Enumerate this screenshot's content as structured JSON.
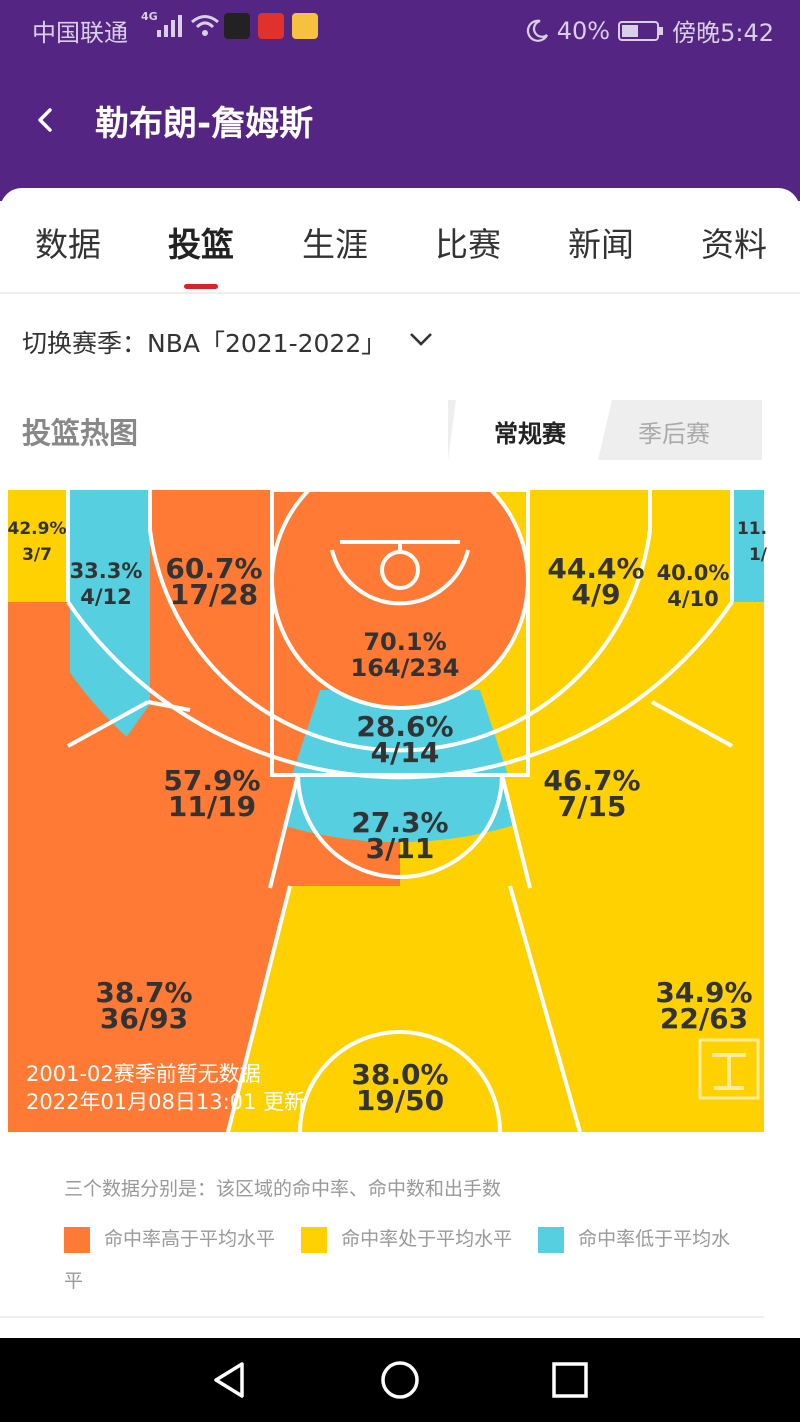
{
  "status": {
    "carrier": "中国联通",
    "network": "4G",
    "battery": "40%",
    "time": "傍晚5:42"
  },
  "header": {
    "title": "勒布朗-詹姆斯"
  },
  "tabs": [
    {
      "label": "数据"
    },
    {
      "label": "投篮"
    },
    {
      "label": "生涯"
    },
    {
      "label": "比赛"
    },
    {
      "label": "新闻"
    },
    {
      "label": "资料"
    }
  ],
  "season": {
    "label": "切换赛季：NBA「2021-2022」"
  },
  "heatmap": {
    "title": "投篮热图",
    "segment": {
      "regular": "常规赛",
      "playoffs": "季后赛"
    },
    "zones": {
      "left_corner3": {
        "pct": "42.9%",
        "att": "3/7"
      },
      "right_corner3": {
        "pct": "11.",
        "att": "1/"
      },
      "left_wing3": {
        "pct": "33.3%",
        "att": "4/12"
      },
      "left_mid_top": {
        "pct": "60.7%",
        "att": "17/28"
      },
      "restricted": {
        "pct": "70.1%",
        "att": "164/234"
      },
      "right_mid_top": {
        "pct": "44.4%",
        "att": "4/9"
      },
      "right_wing3": {
        "pct": "40.0%",
        "att": "4/10"
      },
      "paint": {
        "pct": "28.6%",
        "att": "4/14"
      },
      "left_elbow": {
        "pct": "57.9%",
        "att": "11/19"
      },
      "right_elbow": {
        "pct": "46.7%",
        "att": "7/15"
      },
      "top_mid": {
        "pct": "27.3%",
        "att": "3/11"
      },
      "left_three": {
        "pct": "38.7%",
        "att": "36/93"
      },
      "right_three": {
        "pct": "34.9%",
        "att": "22/63"
      },
      "top_three": {
        "pct": "38.0%",
        "att": "19/50"
      }
    },
    "note_line1": "2001-02赛季前暂无数据",
    "note_line2": "2022年01月08日13:01 更新",
    "legend_desc": "三个数据分别是：该区域的命中率、命中数和出手数",
    "legend": [
      {
        "label": "命中率高于平均水平"
      },
      {
        "label": "命中率处于平均水平"
      },
      {
        "label": "命中率低于平均水平"
      }
    ]
  },
  "colors": {
    "brand_purple": "#552583",
    "above_avg": "#ff7a35",
    "avg": "#ffd100",
    "below_avg": "#56cfe1",
    "tab_indicator": "#d6242b"
  }
}
